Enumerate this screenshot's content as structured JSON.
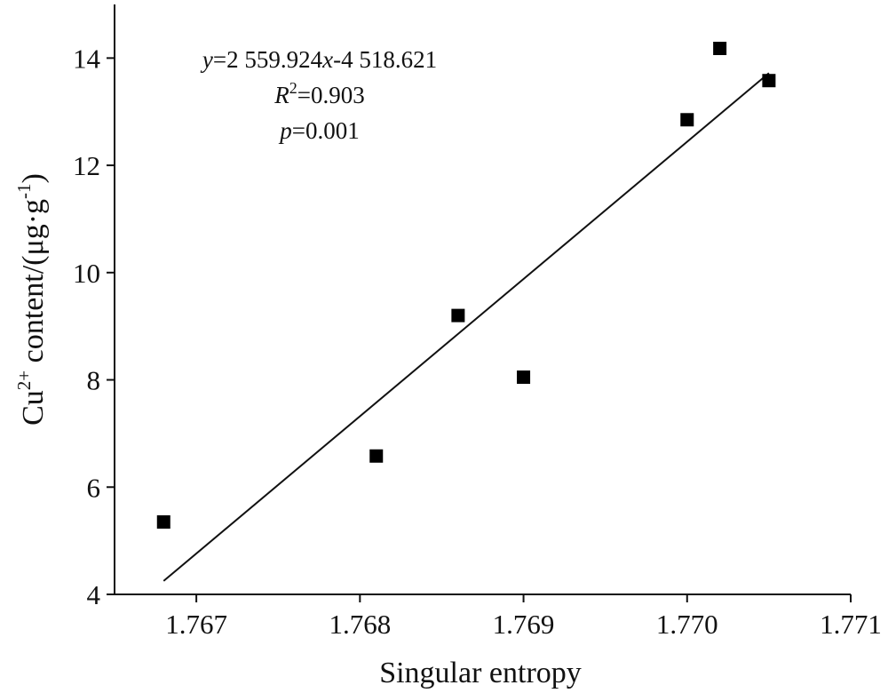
{
  "chart_data": {
    "type": "scatter",
    "xlabel": "Singular entropy",
    "ylabel": {
      "base": "Cu",
      "sup1": "2+",
      "mid": " content/(μg·g",
      "sup2": "-1",
      "end": ")"
    },
    "xlim": [
      1.7665,
      1.771
    ],
    "ylim": [
      4,
      15
    ],
    "x_ticks": [
      "1.767",
      "1.768",
      "1.769",
      "1.770",
      "1.771"
    ],
    "y_ticks": [
      "4",
      "6",
      "8",
      "10",
      "12",
      "14"
    ],
    "grid": false,
    "legend": "none",
    "points": [
      {
        "x": 1.7668,
        "y": 5.35
      },
      {
        "x": 1.7681,
        "y": 6.58
      },
      {
        "x": 1.7686,
        "y": 9.2
      },
      {
        "x": 1.769,
        "y": 8.05
      },
      {
        "x": 1.77,
        "y": 12.85
      },
      {
        "x": 1.7702,
        "y": 14.18
      },
      {
        "x": 1.7705,
        "y": 13.58
      }
    ],
    "fit": {
      "x_start": 1.7668,
      "x_end": 1.7705,
      "y_start": 4.25,
      "y_end": 13.72
    },
    "annotations": {
      "equation": {
        "var1": "y",
        "eq1": "=2 559.924",
        "var2": "x",
        "eq2": "-4 518.621"
      },
      "r2": {
        "var": "R",
        "sup": "2",
        "val": "=0.903"
      },
      "p": {
        "var": "p",
        "val": "=0.001"
      }
    }
  },
  "colors": {
    "marker": "#000000",
    "axis": "#111111"
  }
}
